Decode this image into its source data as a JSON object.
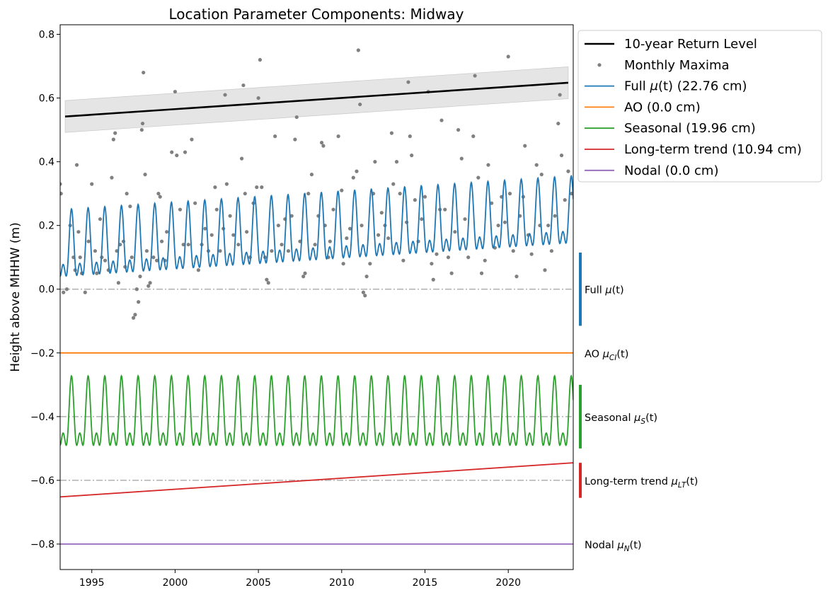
{
  "chart_data": {
    "type": "line",
    "title": "Location Parameter Components: Midway",
    "xlabel": "",
    "ylabel": "Height above MHHW (m)",
    "xlim": [
      1993.1,
      2023.9
    ],
    "ylim": [
      -0.88,
      0.83
    ],
    "x_ticks": [
      1995,
      2000,
      2005,
      2010,
      2015,
      2020
    ],
    "x_tick_labels": [
      "1995",
      "2000",
      "2005",
      "2010",
      "2015",
      "2020"
    ],
    "y_ticks": [
      -0.8,
      -0.6,
      -0.4,
      -0.2,
      0.0,
      0.2,
      0.4,
      0.6,
      0.8
    ],
    "y_tick_labels": [
      "−0.8",
      "−0.6",
      "−0.4",
      "−0.2",
      "0.0",
      "0.2",
      "0.4",
      "0.6",
      "0.8"
    ],
    "grid": false,
    "legend_position": "outside-top-right",
    "reference_lines": [
      0.0,
      -0.4,
      -0.6
    ],
    "return_level": {
      "label": "10-year Return Level",
      "color": "#000000",
      "x": [
        1993.4,
        2023.6
      ],
      "y": [
        0.542,
        0.648
      ],
      "band_lower": [
        0.492,
        0.598
      ],
      "band_upper": [
        0.592,
        0.698
      ]
    },
    "monthly_maxima": {
      "label": "Monthly Maxima",
      "color": "#808080",
      "points": [
        [
          1993.1,
          0.33
        ],
        [
          1993.15,
          0.3
        ],
        [
          1993.3,
          -0.01
        ],
        [
          1993.5,
          0.0
        ],
        [
          1993.7,
          0.2
        ],
        [
          1993.9,
          0.1
        ],
        [
          1994.0,
          0.06
        ],
        [
          1994.1,
          0.39
        ],
        [
          1994.2,
          0.18
        ],
        [
          1994.3,
          0.1
        ],
        [
          1994.4,
          0.05
        ],
        [
          1994.6,
          -0.01
        ],
        [
          1994.8,
          0.15
        ],
        [
          1995.0,
          0.33
        ],
        [
          1995.2,
          0.12
        ],
        [
          1995.3,
          0.05
        ],
        [
          1995.5,
          0.22
        ],
        [
          1995.6,
          0.1
        ],
        [
          1995.8,
          0.09
        ],
        [
          1996.0,
          0.06
        ],
        [
          1996.2,
          0.35
        ],
        [
          1996.3,
          0.47
        ],
        [
          1996.4,
          0.49
        ],
        [
          1996.5,
          0.12
        ],
        [
          1996.6,
          0.02
        ],
        [
          1996.7,
          0.14
        ],
        [
          1996.9,
          0.15
        ],
        [
          1997.0,
          0.07
        ],
        [
          1997.1,
          0.3
        ],
        [
          1997.3,
          0.26
        ],
        [
          1997.4,
          0.1
        ],
        [
          1997.5,
          -0.09
        ],
        [
          1997.6,
          -0.08
        ],
        [
          1997.7,
          0.0
        ],
        [
          1997.8,
          -0.04
        ],
        [
          1997.9,
          0.04
        ],
        [
          1998.0,
          0.5
        ],
        [
          1998.05,
          0.52
        ],
        [
          1998.1,
          0.68
        ],
        [
          1998.2,
          0.36
        ],
        [
          1998.3,
          0.12
        ],
        [
          1998.4,
          0.01
        ],
        [
          1998.5,
          0.02
        ],
        [
          1998.7,
          0.1
        ],
        [
          1998.9,
          0.09
        ],
        [
          1999.0,
          0.3
        ],
        [
          1999.1,
          0.29
        ],
        [
          1999.2,
          0.15
        ],
        [
          1999.4,
          0.09
        ],
        [
          1999.5,
          0.18
        ],
        [
          1999.8,
          0.43
        ],
        [
          2000.0,
          0.62
        ],
        [
          2000.1,
          0.42
        ],
        [
          2000.3,
          0.25
        ],
        [
          2000.5,
          0.14
        ],
        [
          2000.6,
          0.43
        ],
        [
          2000.8,
          0.14
        ],
        [
          2001.0,
          0.47
        ],
        [
          2001.2,
          0.27
        ],
        [
          2001.4,
          0.06
        ],
        [
          2001.6,
          0.14
        ],
        [
          2001.8,
          0.19
        ],
        [
          2002.0,
          0.12
        ],
        [
          2002.2,
          0.17
        ],
        [
          2002.4,
          0.32
        ],
        [
          2002.5,
          0.25
        ],
        [
          2002.7,
          0.12
        ],
        [
          2002.9,
          0.19
        ],
        [
          2003.0,
          0.61
        ],
        [
          2003.1,
          0.33
        ],
        [
          2003.3,
          0.23
        ],
        [
          2003.5,
          0.17
        ],
        [
          2003.8,
          0.14
        ],
        [
          2004.0,
          0.41
        ],
        [
          2004.1,
          0.64
        ],
        [
          2004.2,
          0.3
        ],
        [
          2004.3,
          0.18
        ],
        [
          2004.5,
          0.1
        ],
        [
          2004.7,
          0.27
        ],
        [
          2004.9,
          0.32
        ],
        [
          2005.0,
          0.6
        ],
        [
          2005.1,
          0.72
        ],
        [
          2005.2,
          0.32
        ],
        [
          2005.4,
          0.1
        ],
        [
          2005.5,
          0.03
        ],
        [
          2005.6,
          0.02
        ],
        [
          2005.8,
          0.12
        ],
        [
          2006.0,
          0.48
        ],
        [
          2006.2,
          0.2
        ],
        [
          2006.4,
          0.14
        ],
        [
          2006.6,
          0.22
        ],
        [
          2006.8,
          0.12
        ],
        [
          2007.0,
          0.23
        ],
        [
          2007.2,
          0.47
        ],
        [
          2007.3,
          0.54
        ],
        [
          2007.5,
          0.15
        ],
        [
          2007.7,
          0.04
        ],
        [
          2007.8,
          0.05
        ],
        [
          2008.0,
          0.3
        ],
        [
          2008.2,
          0.36
        ],
        [
          2008.4,
          0.14
        ],
        [
          2008.6,
          0.23
        ],
        [
          2008.8,
          0.46
        ],
        [
          2008.9,
          0.45
        ],
        [
          2009.0,
          0.2
        ],
        [
          2009.2,
          0.1
        ],
        [
          2009.3,
          0.15
        ],
        [
          2009.5,
          0.25
        ],
        [
          2009.8,
          0.48
        ],
        [
          2010.0,
          0.31
        ],
        [
          2010.1,
          0.08
        ],
        [
          2010.3,
          0.16
        ],
        [
          2010.5,
          0.19
        ],
        [
          2010.7,
          0.35
        ],
        [
          2010.9,
          0.37
        ],
        [
          2011.0,
          0.75
        ],
        [
          2011.1,
          0.58
        ],
        [
          2011.2,
          0.2
        ],
        [
          2011.3,
          -0.01
        ],
        [
          2011.4,
          -0.02
        ],
        [
          2011.5,
          0.04
        ],
        [
          2011.7,
          0.08
        ],
        [
          2011.9,
          0.3
        ],
        [
          2012.0,
          0.4
        ],
        [
          2012.2,
          0.17
        ],
        [
          2012.4,
          0.24
        ],
        [
          2012.6,
          0.2
        ],
        [
          2012.8,
          0.16
        ],
        [
          2013.0,
          0.49
        ],
        [
          2013.1,
          0.33
        ],
        [
          2013.3,
          0.4
        ],
        [
          2013.5,
          0.3
        ],
        [
          2013.7,
          0.09
        ],
        [
          2013.9,
          0.21
        ],
        [
          2014.0,
          0.65
        ],
        [
          2014.1,
          0.48
        ],
        [
          2014.2,
          0.42
        ],
        [
          2014.4,
          0.28
        ],
        [
          2014.6,
          0.15
        ],
        [
          2014.8,
          0.22
        ],
        [
          2015.0,
          0.29
        ],
        [
          2015.2,
          0.62
        ],
        [
          2015.4,
          0.08
        ],
        [
          2015.5,
          0.03
        ],
        [
          2015.7,
          0.11
        ],
        [
          2015.9,
          0.25
        ],
        [
          2016.0,
          0.53
        ],
        [
          2016.2,
          0.25
        ],
        [
          2016.4,
          0.1
        ],
        [
          2016.6,
          0.05
        ],
        [
          2016.8,
          0.18
        ],
        [
          2017.0,
          0.5
        ],
        [
          2017.2,
          0.41
        ],
        [
          2017.4,
          0.22
        ],
        [
          2017.6,
          0.1
        ],
        [
          2017.9,
          0.48
        ],
        [
          2018.0,
          0.67
        ],
        [
          2018.2,
          0.35
        ],
        [
          2018.4,
          0.05
        ],
        [
          2018.6,
          0.09
        ],
        [
          2018.8,
          0.39
        ],
        [
          2019.0,
          0.27
        ],
        [
          2019.2,
          0.13
        ],
        [
          2019.4,
          0.2
        ],
        [
          2019.6,
          0.29
        ],
        [
          2019.8,
          0.21
        ],
        [
          2020.0,
          0.73
        ],
        [
          2020.1,
          0.3
        ],
        [
          2020.3,
          0.12
        ],
        [
          2020.5,
          0.04
        ],
        [
          2020.7,
          0.23
        ],
        [
          2020.9,
          0.29
        ],
        [
          2021.0,
          0.45
        ],
        [
          2021.2,
          0.17
        ],
        [
          2021.4,
          0.11
        ],
        [
          2021.7,
          0.39
        ],
        [
          2021.9,
          0.2
        ],
        [
          2022.0,
          0.36
        ],
        [
          2022.2,
          0.06
        ],
        [
          2022.4,
          0.2
        ],
        [
          2022.6,
          0.12
        ],
        [
          2022.8,
          0.23
        ],
        [
          2023.0,
          0.52
        ],
        [
          2023.1,
          0.61
        ],
        [
          2023.2,
          0.42
        ],
        [
          2023.4,
          0.28
        ],
        [
          2023.6,
          0.37
        ],
        [
          2023.8,
          0.3
        ]
      ]
    },
    "series": [
      {
        "name": "Full μ(t) (22.76 cm)",
        "legend_main": "Full ",
        "legend_math": "μ",
        "legend_tail": "(t) (22.76 cm)",
        "color": "#1f77b4",
        "kind": "full",
        "offset": 0.0,
        "trend_start": 0.134,
        "trend_end": 0.24,
        "amplitude": 0.107,
        "annual_min_above_mean": -0.107
      },
      {
        "name": "AO (0.0 cm)",
        "legend_main": "AO (0.0 cm)",
        "color": "#ff7f0e",
        "kind": "constant",
        "value": -0.2
      },
      {
        "name": "Seasonal (19.96 cm)",
        "legend_main": "Seasonal (19.96 cm)",
        "color": "#2ca02c",
        "kind": "seasonal",
        "center": -0.4,
        "peak": -0.272,
        "trough": -0.49
      },
      {
        "name": "Long-term trend (10.94 cm)",
        "legend_main": "Long-term trend (10.94 cm)",
        "color": "#d62728",
        "kind": "linear",
        "start": -0.652,
        "end": -0.545
      },
      {
        "name": "Nodal (0.0 cm)",
        "legend_main": "Nodal (0.0 cm)",
        "color": "#9467bd",
        "kind": "constant",
        "value": -0.8
      }
    ],
    "component_labels": [
      {
        "text": "Full ",
        "math": "μ",
        "sub": "",
        "tail": "(t)",
        "y": 0.0,
        "bar": [
          -0.115,
          0.115
        ],
        "color": "#1f77b4"
      },
      {
        "text": "AO ",
        "math": "μ",
        "sub": "CI",
        "tail": "(t)",
        "y": -0.2,
        "bar": null,
        "color": "#ff7f0e"
      },
      {
        "text": "Seasonal ",
        "math": "μ",
        "sub": "S",
        "tail": "(t)",
        "y": -0.4,
        "bar": [
          -0.5,
          -0.3
        ],
        "color": "#2ca02c"
      },
      {
        "text": "Long-term trend ",
        "math": "μ",
        "sub": "LT",
        "tail": "(t)",
        "y": -0.6,
        "bar": [
          -0.655,
          -0.545
        ],
        "color": "#d62728"
      },
      {
        "text": "Nodal ",
        "math": "μ",
        "sub": "N",
        "tail": "(t)",
        "y": -0.8,
        "bar": null,
        "color": "#9467bd"
      }
    ]
  }
}
